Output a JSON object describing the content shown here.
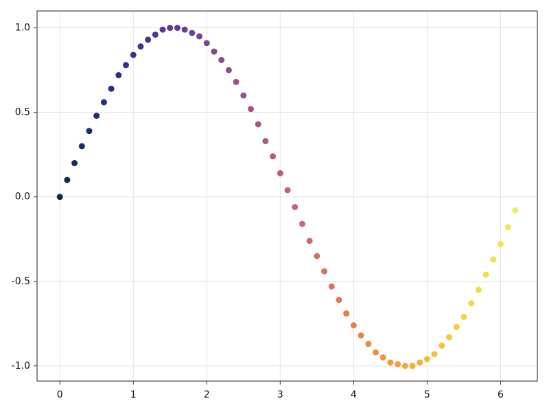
{
  "chart_data": {
    "type": "scatter",
    "x": [
      0,
      0.1,
      0.2,
      0.3,
      0.4,
      0.5,
      0.6,
      0.7,
      0.8,
      0.9,
      1,
      1.1,
      1.2,
      1.3,
      1.4,
      1.5,
      1.6,
      1.7,
      1.8,
      1.9,
      2,
      2.1,
      2.2,
      2.3,
      2.4,
      2.5,
      2.6,
      2.7,
      2.8,
      2.9,
      3,
      3.1,
      3.2,
      3.3,
      3.4,
      3.5,
      3.6,
      3.7,
      3.8,
      3.9,
      4,
      4.1,
      4.2,
      4.3,
      4.4,
      4.5,
      4.6,
      4.7,
      4.8,
      4.9,
      5,
      5.1,
      5.2,
      5.3,
      5.4,
      5.5,
      5.6,
      5.7,
      5.8,
      5.9,
      6,
      6.1,
      6.2
    ],
    "values": [
      0,
      0.1,
      0.2,
      0.3,
      0.39,
      0.48,
      0.56,
      0.64,
      0.72,
      0.78,
      0.84,
      0.89,
      0.93,
      0.96,
      0.99,
      1,
      1,
      0.99,
      0.97,
      0.95,
      0.91,
      0.86,
      0.81,
      0.75,
      0.68,
      0.6,
      0.52,
      0.43,
      0.33,
      0.24,
      0.14,
      0.04,
      -0.06,
      -0.16,
      -0.26,
      -0.35,
      -0.44,
      -0.53,
      -0.61,
      -0.69,
      -0.76,
      -0.82,
      -0.87,
      -0.92,
      -0.95,
      -0.98,
      -0.99,
      -1,
      -1,
      -0.98,
      -0.96,
      -0.93,
      -0.88,
      -0.83,
      -0.77,
      -0.71,
      -0.63,
      -0.55,
      -0.46,
      -0.37,
      -0.28,
      -0.18,
      -0.08
    ],
    "colormap": [
      "#0b2a48",
      "#2b2f8c",
      "#5b3b9e",
      "#8f4f8b",
      "#c06179",
      "#e4794f",
      "#f5a33a",
      "#f6cf3c",
      "#e9f15a"
    ],
    "xlim": [
      -0.31,
      6.5
    ],
    "xticks": [
      0,
      1,
      2,
      3,
      4,
      5,
      6
    ],
    "ylim": [
      -1.09,
      1.1
    ],
    "yticks": [
      {
        "value": -1,
        "label": "-1.0"
      },
      -0.5,
      {
        "value": 0,
        "label": "0.0"
      },
      0.5,
      {
        "value": 1,
        "label": "1.0"
      }
    ],
    "grid": true
  }
}
